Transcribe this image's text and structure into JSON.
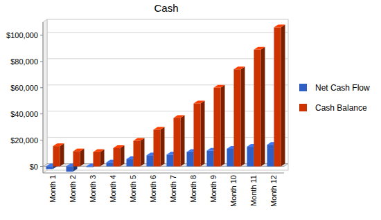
{
  "chart_data": {
    "type": "bar",
    "title": "Cash",
    "categories": [
      "Month 1",
      "Month 2",
      "Month 3",
      "Month 4",
      "Month 5",
      "Month 6",
      "Month 7",
      "Month 8",
      "Month 9",
      "Month 10",
      "Month 11",
      "Month 12"
    ],
    "series": [
      {
        "name": "Net Cash Flow",
        "color": "#2f5fc4",
        "values": [
          -2000,
          -4000,
          -500,
          3000,
          5500,
          8500,
          9000,
          11000,
          12000,
          13500,
          15000,
          16500
        ]
      },
      {
        "name": "Cash Balance",
        "color": "#cc3300",
        "values": [
          15500,
          11500,
          11000,
          14000,
          19500,
          28000,
          37000,
          48000,
          60000,
          74000,
          89000,
          106000
        ]
      }
    ],
    "ylim": [
      -5000,
      110000
    ],
    "yticks": [
      {
        "value": 0,
        "label": "$0"
      },
      {
        "value": 20000,
        "label": "$20,000"
      },
      {
        "value": 40000,
        "label": "$40,000"
      },
      {
        "value": 60000,
        "label": "$60,000"
      },
      {
        "value": 80000,
        "label": "$80,000"
      },
      {
        "value": 100000,
        "label": "$100,000"
      }
    ],
    "grid": true,
    "legend": "right"
  }
}
